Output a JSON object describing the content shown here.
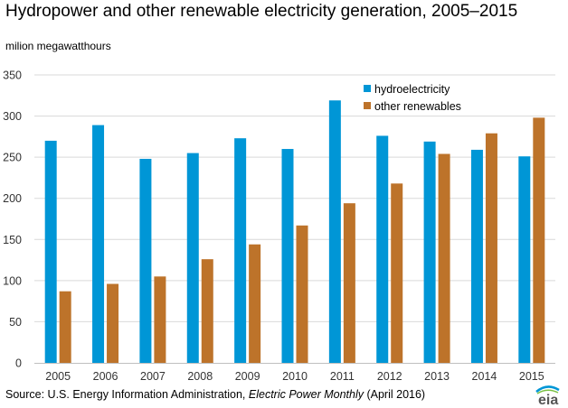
{
  "colors": {
    "hydro": "#0096d6",
    "other": "#bd732a",
    "grid": "#d9d9d9"
  },
  "source": {
    "prefix": "Source: U.S. Energy Information Administration, ",
    "italic": "Electric Power Monthly",
    "suffix": " (April 2016)"
  },
  "logo": {
    "text": "eia"
  },
  "chart_data": {
    "type": "bar",
    "title": "Hydropower and other renewable electricity generation, 2005–2015",
    "subtitle": "milion megawatthours",
    "xlabel": "",
    "ylabel": "",
    "ylim": [
      0,
      350
    ],
    "yticks": [
      0,
      50,
      100,
      150,
      200,
      250,
      300,
      350
    ],
    "grid": true,
    "legend_position": "top-right",
    "categories": [
      "2005",
      "2006",
      "2007",
      "2008",
      "2009",
      "2010",
      "2011",
      "2012",
      "2013",
      "2014",
      "2015"
    ],
    "series": [
      {
        "name": "hydroelectricity",
        "color": "#0096d6",
        "values": [
          270,
          289,
          248,
          255,
          273,
          260,
          319,
          276,
          269,
          259,
          251
        ]
      },
      {
        "name": "other renewables",
        "color": "#bd732a",
        "values": [
          87,
          96,
          105,
          126,
          144,
          167,
          194,
          218,
          254,
          279,
          298
        ]
      }
    ]
  }
}
